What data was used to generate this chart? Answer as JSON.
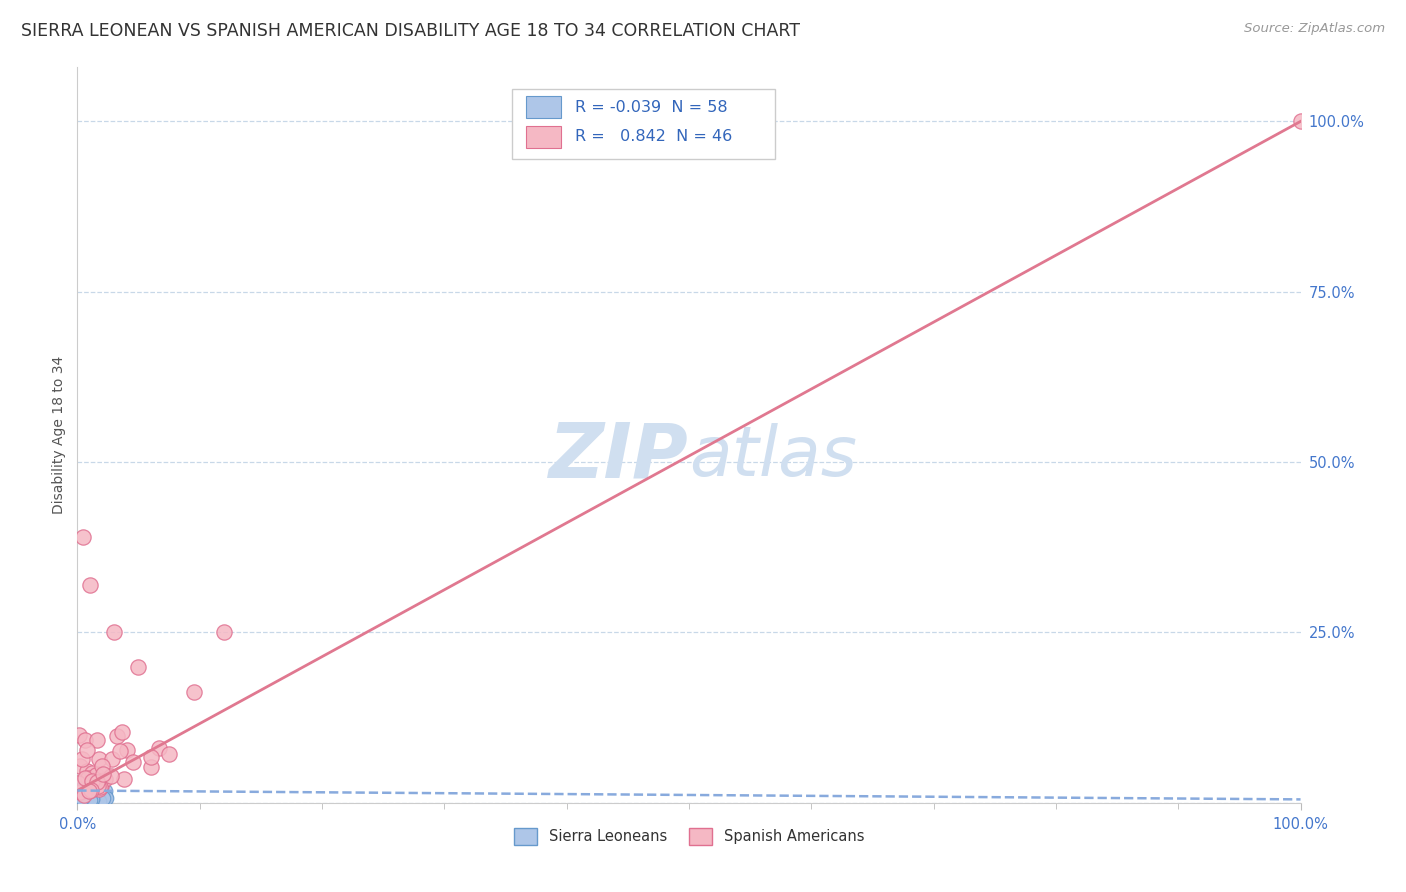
{
  "title": "SIERRA LEONEAN VS SPANISH AMERICAN DISABILITY AGE 18 TO 34 CORRELATION CHART",
  "source": "Source: ZipAtlas.com",
  "ylabel": "Disability Age 18 to 34",
  "xlim": [
    0.0,
    1.0
  ],
  "ylim": [
    0.0,
    1.08
  ],
  "ytick_positions": [
    0.0,
    0.25,
    0.5,
    0.75,
    1.0
  ],
  "ytick_labels": [
    "",
    "25.0%",
    "50.0%",
    "75.0%",
    "100.0%"
  ],
  "legend_r_blue": "-0.039",
  "legend_n_blue": "58",
  "legend_r_pink": "0.842",
  "legend_n_pink": "46",
  "blue_scatter_color": "#aec6e8",
  "blue_edge_color": "#6699cc",
  "pink_scatter_color": "#f5b8c4",
  "pink_edge_color": "#e07090",
  "blue_trend_color": "#88aadd",
  "pink_trend_color": "#e07890",
  "watermark_color": "#d0dff0",
  "grid_color": "#c8d8e8",
  "title_color": "#333333",
  "tick_color": "#4477cc",
  "source_color": "#999999",
  "ylabel_color": "#555555",
  "legend_text_color": "#3366bb",
  "background_color": "#ffffff",
  "pink_trend_x": [
    0.0,
    1.0
  ],
  "pink_trend_y": [
    0.018,
    1.0
  ],
  "blue_trend_x": [
    0.0,
    1.0
  ],
  "blue_trend_y": [
    0.018,
    0.005
  ],
  "title_fontsize": 12.5,
  "tick_fontsize": 10.5,
  "legend_fontsize": 11.5,
  "ylabel_fontsize": 10,
  "source_fontsize": 9.5,
  "watermark_fontsize": 50,
  "scatter_size": 110
}
